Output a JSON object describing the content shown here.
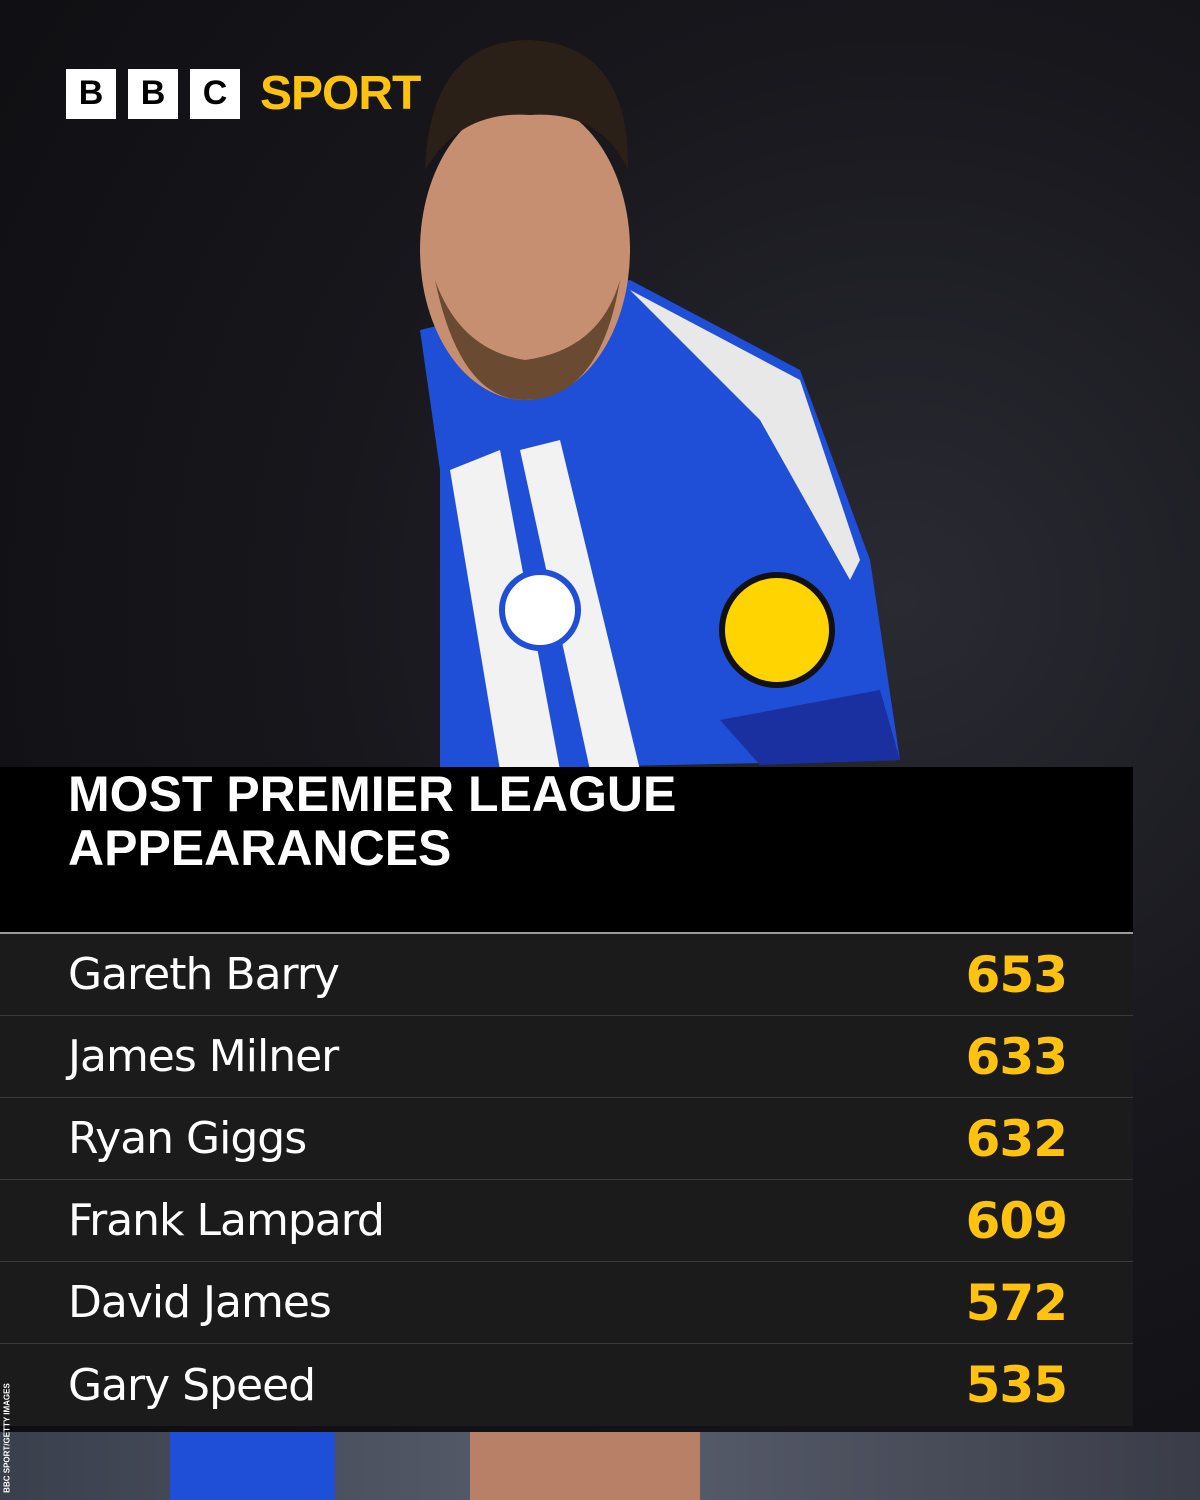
{
  "logo": {
    "letters": [
      "B",
      "B",
      "C"
    ],
    "sport": "SPORT"
  },
  "title": {
    "line1": "MOST PREMIER LEAGUE",
    "line2": "APPEARANCES"
  },
  "rows": [
    {
      "name": "Gareth Barry",
      "value": "653"
    },
    {
      "name": "James Milner",
      "value": "633"
    },
    {
      "name": "Ryan Giggs",
      "value": "632"
    },
    {
      "name": "Frank Lampard",
      "value": "609"
    },
    {
      "name": "David James",
      "value": "572"
    },
    {
      "name": "Gary Speed",
      "value": "535"
    }
  ],
  "credit": "BBC SPORT/GETTY IMAGES",
  "colors": {
    "accent": "#ffc20e",
    "row_bg": "#1b1b1b",
    "title_bg": "#000000",
    "kit_blue": "#1f4fd6"
  }
}
